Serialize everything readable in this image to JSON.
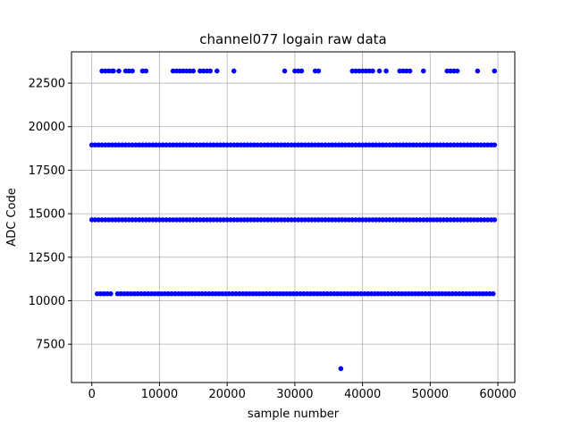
{
  "chart_data": {
    "type": "scatter",
    "title": "channel077 logain raw data",
    "xlabel": "sample number",
    "ylabel": "ADC Code",
    "xlim": [
      -3000,
      62500
    ],
    "ylim": [
      5300,
      24300
    ],
    "xticks": [
      0,
      10000,
      20000,
      30000,
      40000,
      50000,
      60000
    ],
    "yticks": [
      7500,
      10000,
      12500,
      15000,
      17500,
      20000,
      22500
    ],
    "grid": true,
    "marker_color": "#0000ff",
    "series": [
      {
        "bands": [
          {
            "y": 23200,
            "x_points": [
              1500,
              2000,
              2500,
              3000,
              3200,
              4000,
              5000,
              5500,
              6000,
              7500,
              8000,
              12000,
              12500,
              13000,
              13500,
              14000,
              14500,
              15000,
              16000,
              16500,
              17000,
              17500,
              18500,
              21000,
              28500,
              30000,
              30500,
              31000,
              33000,
              33500,
              38500,
              39000,
              39500,
              40000,
              40500,
              41000,
              41500,
              42500,
              43500,
              45500,
              46000,
              46500,
              47000,
              49000,
              52500,
              53000,
              53500,
              54000,
              57000,
              59500
            ]
          },
          {
            "y": 18950,
            "x_ranges": [
              [
                0,
                59500
              ]
            ]
          },
          {
            "y": 14650,
            "x_ranges": [
              [
                0,
                59500
              ]
            ]
          },
          {
            "y": 10400,
            "x_ranges": [
              [
                800,
                2800
              ],
              [
                3800,
                59500
              ]
            ]
          },
          {
            "y": 6100,
            "x_points": [
              36800
            ]
          }
        ]
      }
    ]
  }
}
